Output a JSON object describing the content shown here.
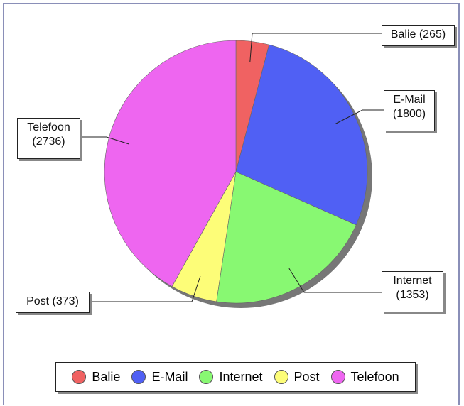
{
  "chart_data": {
    "type": "pie",
    "categories": [
      "Balie",
      "E-Mail",
      "Internet",
      "Post",
      "Telefoon"
    ],
    "values": [
      265,
      1800,
      1353,
      373,
      2736
    ],
    "value_labels": [
      "Balie (265)",
      "E-Mail (1800)",
      "Internet (1353)",
      "Post (373)",
      "Telefoon (2736)"
    ],
    "colors": [
      "#f06262",
      "#5060f4",
      "#88f872",
      "#fdfd78",
      "#ee66f0"
    ],
    "legend": "bottom"
  }
}
